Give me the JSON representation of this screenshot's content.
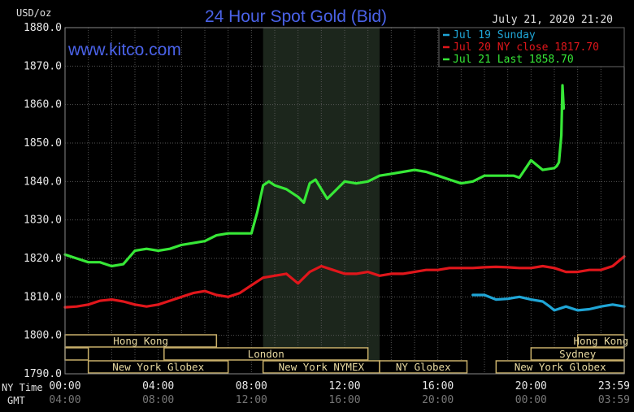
{
  "chart_data": {
    "type": "line",
    "title": "24 Hour Spot Gold (Bid)",
    "timestamp": "July 21, 2020 21:20",
    "source": "www.kitco.com",
    "y_unit": "USD/oz",
    "ylim": [
      1790,
      1880
    ],
    "y_ticks": [
      "1880.0",
      "1870.0",
      "1860.0",
      "1850.0",
      "1840.0",
      "1830.0",
      "1820.0",
      "1810.0",
      "1800.0",
      "1790.0"
    ],
    "x_row_labels": {
      "ny": "NY Time",
      "gmt": "GMT"
    },
    "x_ticks_ny": [
      "00:00",
      "04:00",
      "08:00",
      "12:00",
      "16:00",
      "20:00",
      "23:59"
    ],
    "x_ticks_gmt": [
      "04:00",
      "08:00",
      "12:00",
      "16:00",
      "20:00",
      "00:00",
      "03:59"
    ],
    "grid": true,
    "legend_position": "top-right",
    "series": [
      {
        "name": "Jul 19 Sunday",
        "color": "#1fa5d6",
        "x": [
          17.5,
          18.0,
          18.5,
          19.0,
          19.5,
          20.0,
          20.5,
          20.8,
          21.0,
          21.5,
          22.0,
          22.5,
          23.0,
          23.5,
          24.0
        ],
        "y": [
          1810.5,
          1810.5,
          1809.3,
          1809.5,
          1810.0,
          1809.3,
          1808.8,
          1807.5,
          1806.5,
          1807.5,
          1806.5,
          1806.8,
          1807.5,
          1808.0,
          1807.5
        ]
      },
      {
        "name": "Jul 20 NY close 1817.70",
        "color": "#e0161b",
        "x": [
          0,
          0.5,
          1,
          1.5,
          2,
          2.5,
          3,
          3.5,
          4,
          4.5,
          5,
          5.5,
          6,
          6.5,
          7,
          7.5,
          8,
          8.5,
          9,
          9.5,
          10,
          10.5,
          11,
          11.5,
          12,
          12.5,
          13,
          13.5,
          14,
          14.5,
          15,
          15.5,
          16,
          16.5,
          17,
          17.5,
          18,
          18.5,
          19,
          19.5,
          20,
          20.5,
          21,
          21.5,
          22,
          22.5,
          23,
          23.5,
          24
        ],
        "y": [
          1807.3,
          1807.5,
          1808.0,
          1809.0,
          1809.3,
          1808.8,
          1808.0,
          1807.5,
          1808.0,
          1809.0,
          1810.0,
          1811.0,
          1811.5,
          1810.5,
          1810.0,
          1811.0,
          1813.0,
          1815.0,
          1815.5,
          1816.0,
          1813.5,
          1816.5,
          1818.0,
          1817.0,
          1816.0,
          1816.0,
          1816.5,
          1815.5,
          1816.0,
          1816.0,
          1816.5,
          1817.0,
          1817.0,
          1817.5,
          1817.5,
          1817.5,
          1817.7,
          1817.8,
          1817.7,
          1817.5,
          1817.5,
          1818.0,
          1817.5,
          1816.5,
          1816.5,
          1817.0,
          1817.0,
          1818.0,
          1820.5
        ]
      },
      {
        "name": "Jul 21 Last 1858.70",
        "color": "#37e837",
        "x": [
          0,
          0.5,
          1,
          1.5,
          2,
          2.5,
          3,
          3.5,
          4,
          4.5,
          5,
          5.5,
          6,
          6.5,
          7,
          7.5,
          8,
          8.25,
          8.5,
          8.75,
          9,
          9.5,
          10,
          10.25,
          10.5,
          10.75,
          11,
          11.25,
          11.5,
          12,
          12.5,
          13,
          13.5,
          14,
          14.5,
          15,
          15.5,
          16,
          16.5,
          17,
          17.5,
          18,
          18.5,
          19,
          19.25,
          19.5,
          20,
          20.5,
          21,
          21.1,
          21.2,
          21.3,
          21.35,
          21.4
        ],
        "y": [
          1821.0,
          1820.0,
          1819.0,
          1819.0,
          1818.0,
          1818.5,
          1822.0,
          1822.5,
          1822.0,
          1822.5,
          1823.5,
          1824.0,
          1824.5,
          1826.0,
          1826.5,
          1826.5,
          1826.5,
          1832.0,
          1839.0,
          1840.0,
          1839.0,
          1838.0,
          1836.0,
          1834.5,
          1839.5,
          1840.5,
          1838.0,
          1835.5,
          1837.0,
          1840.0,
          1839.5,
          1840.0,
          1841.5,
          1842.0,
          1842.5,
          1843.0,
          1842.5,
          1841.5,
          1840.5,
          1839.5,
          1840.0,
          1841.5,
          1841.5,
          1841.5,
          1841.5,
          1841.0,
          1845.5,
          1843.0,
          1843.5,
          1844.0,
          1845.0,
          1852.0,
          1865.0,
          1859.0
        ]
      }
    ],
    "shaded_region": [
      8.5,
      13.5
    ],
    "markets": [
      {
        "label": "Hong Kong",
        "start": 0,
        "end": 6.5,
        "row": 0,
        "show_label": true
      },
      {
        "label": "Hong Kong",
        "start": 22.0,
        "end": 24,
        "row": 0,
        "show_label": true
      },
      {
        "label": "London",
        "start": 0,
        "end": 1.0,
        "row": 1,
        "show_label": false
      },
      {
        "label": "London",
        "start": 4.25,
        "end": 13.0,
        "row": 1,
        "show_label": true
      },
      {
        "label": "Sydney",
        "start": 20.0,
        "end": 24,
        "row": 1,
        "show_label": true
      },
      {
        "label": "New York Globex",
        "start": 1.0,
        "end": 7.0,
        "row": 2,
        "show_label": true
      },
      {
        "label": "New York NYMEX",
        "start": 8.5,
        "end": 13.5,
        "row": 2,
        "show_label": true
      },
      {
        "label": "NY Globex",
        "start": 13.5,
        "end": 17.25,
        "row": 2,
        "show_label": true
      },
      {
        "label": "New York Globex",
        "start": 18.5,
        "end": 24,
        "row": 2,
        "show_label": true
      }
    ]
  }
}
